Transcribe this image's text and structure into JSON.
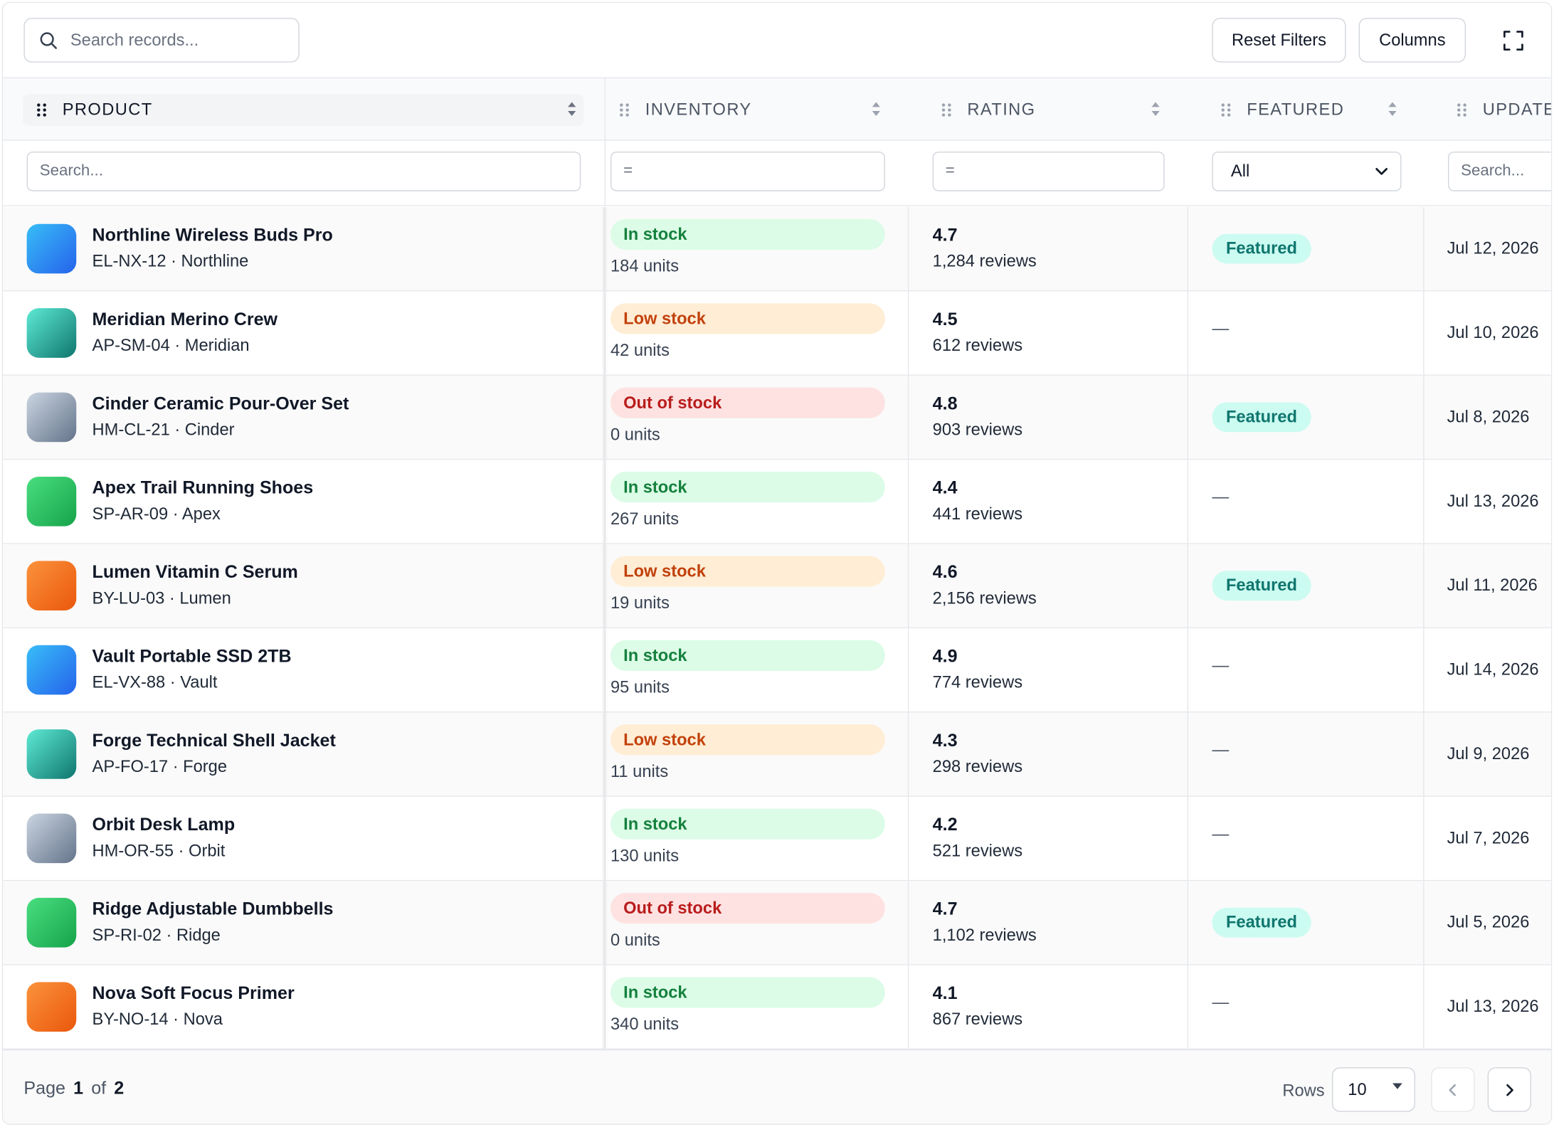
{
  "toolbar": {
    "search_placeholder": "Search records...",
    "reset_label": "Reset Filters",
    "columns_label": "Columns"
  },
  "columns": {
    "product": "PRODUCT",
    "inventory": "INVENTORY",
    "rating": "RATING",
    "featured": "FEATURED",
    "updated": "UPDATED"
  },
  "filters": {
    "product_placeholder": "Search...",
    "inventory_placeholder": "=",
    "rating_placeholder": "=",
    "featured_value": "All",
    "updated_placeholder": "Search..."
  },
  "colors": {
    "in_stock_bg": "#dcfce7",
    "in_stock_fg": "#15803d",
    "low_stock_bg": "#ffedd5",
    "low_stock_fg": "#c2410c",
    "out_stock_bg": "#fee2e2",
    "out_stock_fg": "#b91c1c",
    "featured_bg": "#ccfbf1",
    "featured_fg": "#0f766e"
  },
  "rows": [
    {
      "name": "Northline Wireless Buds Pro",
      "sub": "EL-NX-12 · Northline",
      "thumb": "blue",
      "stock": "In stock",
      "stock_kind": "in",
      "units": "184 units",
      "rating": "4.7",
      "reviews": "1,284 reviews",
      "featured": "Featured",
      "updated": "Jul 12, 2026"
    },
    {
      "name": "Meridian Merino Crew",
      "sub": "AP-SM-04 · Meridian",
      "thumb": "teal",
      "stock": "Low stock",
      "stock_kind": "low",
      "units": "42 units",
      "rating": "4.5",
      "reviews": "612 reviews",
      "featured": "—",
      "updated": "Jul 10, 2026"
    },
    {
      "name": "Cinder Ceramic Pour-Over Set",
      "sub": "HM-CL-21 · Cinder",
      "thumb": "gray",
      "stock": "Out of stock",
      "stock_kind": "out",
      "units": "0 units",
      "rating": "4.8",
      "reviews": "903 reviews",
      "featured": "Featured",
      "updated": "Jul 8, 2026"
    },
    {
      "name": "Apex Trail Running Shoes",
      "sub": "SP-AR-09 · Apex",
      "thumb": "green",
      "stock": "In stock",
      "stock_kind": "in",
      "units": "267 units",
      "rating": "4.4",
      "reviews": "441 reviews",
      "featured": "—",
      "updated": "Jul 13, 2026"
    },
    {
      "name": "Lumen Vitamin C Serum",
      "sub": "BY-LU-03 · Lumen",
      "thumb": "orange",
      "stock": "Low stock",
      "stock_kind": "low",
      "units": "19 units",
      "rating": "4.6",
      "reviews": "2,156 reviews",
      "featured": "Featured",
      "updated": "Jul 11, 2026"
    },
    {
      "name": "Vault Portable SSD 2TB",
      "sub": "EL-VX-88 · Vault",
      "thumb": "blue",
      "stock": "In stock",
      "stock_kind": "in",
      "units": "95 units",
      "rating": "4.9",
      "reviews": "774 reviews",
      "featured": "—",
      "updated": "Jul 14, 2026"
    },
    {
      "name": "Forge Technical Shell Jacket",
      "sub": "AP-FO-17 · Forge",
      "thumb": "teal",
      "stock": "Low stock",
      "stock_kind": "low",
      "units": "11 units",
      "rating": "4.3",
      "reviews": "298 reviews",
      "featured": "—",
      "updated": "Jul 9, 2026"
    },
    {
      "name": "Orbit Desk Lamp",
      "sub": "HM-OR-55 · Orbit",
      "thumb": "gray",
      "stock": "In stock",
      "stock_kind": "in",
      "units": "130 units",
      "rating": "4.2",
      "reviews": "521 reviews",
      "featured": "—",
      "updated": "Jul 7, 2026"
    },
    {
      "name": "Ridge Adjustable Dumbbells",
      "sub": "SP-RI-02 · Ridge",
      "thumb": "green",
      "stock": "Out of stock",
      "stock_kind": "out",
      "units": "0 units",
      "rating": "4.7",
      "reviews": "1,102 reviews",
      "featured": "Featured",
      "updated": "Jul 5, 2026"
    },
    {
      "name": "Nova Soft Focus Primer",
      "sub": "BY-NO-14 · Nova",
      "thumb": "orange",
      "stock": "In stock",
      "stock_kind": "in",
      "units": "340 units",
      "rating": "4.1",
      "reviews": "867 reviews",
      "featured": "—",
      "updated": "Jul 13, 2026"
    }
  ],
  "footer": {
    "page_word": "Page",
    "page_current": "1",
    "of_word": "of",
    "page_total": "2",
    "rows_label": "Rows",
    "rows_value": "10"
  }
}
